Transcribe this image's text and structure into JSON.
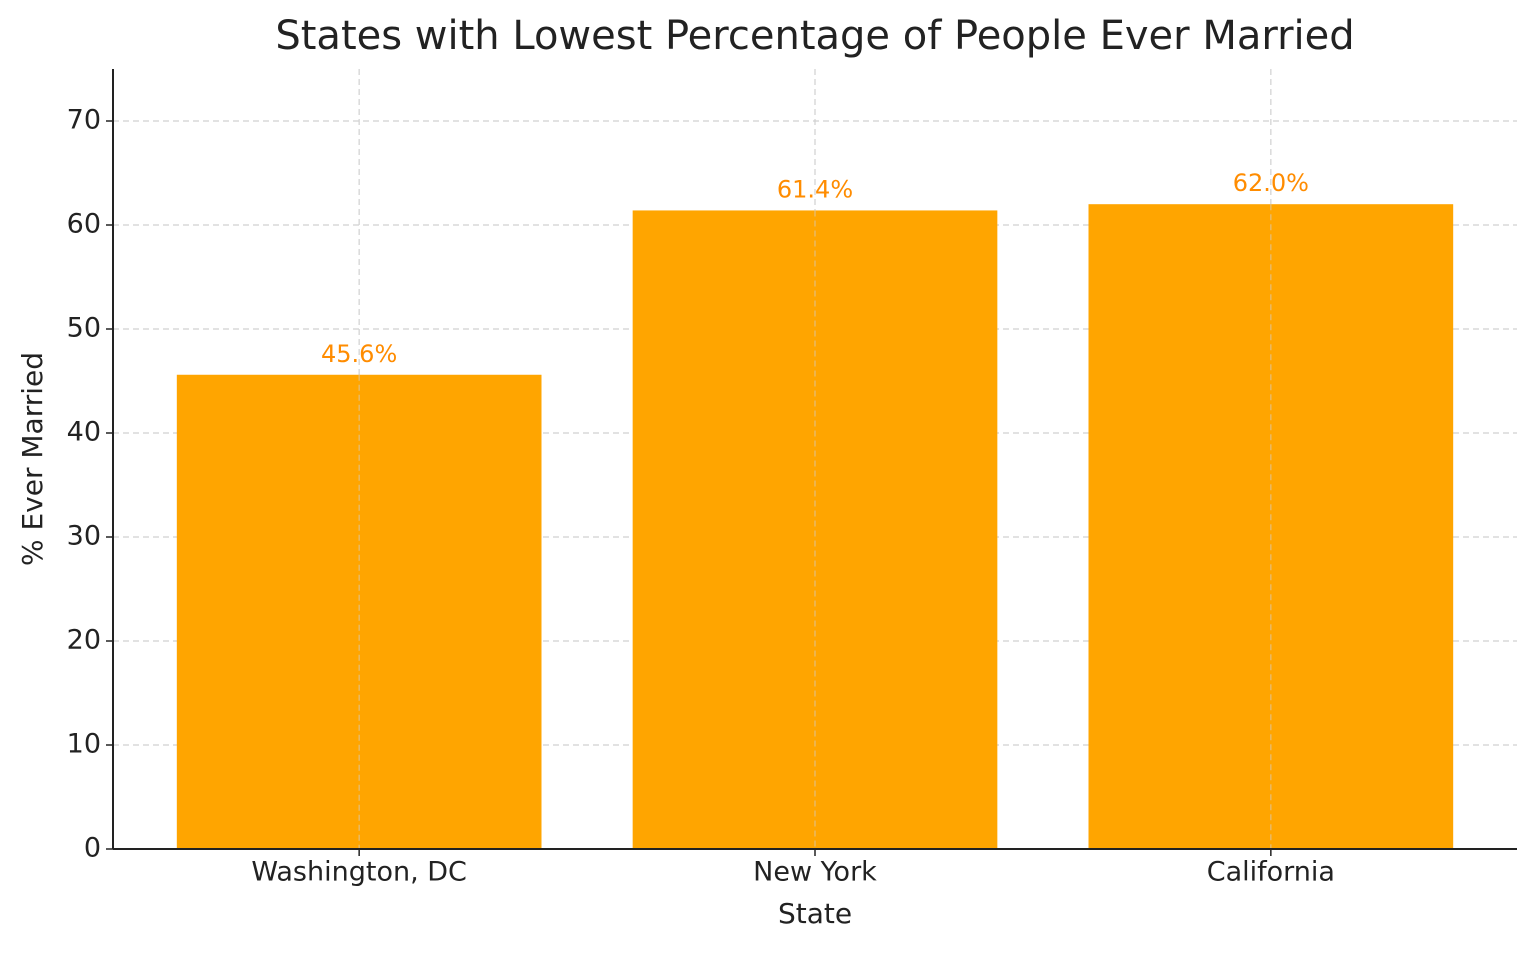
{
  "chart_data": {
    "type": "bar",
    "title": "States with Lowest Percentage of People Ever Married",
    "x_label": "State",
    "y_label": "% Ever Married",
    "categories": [
      "Washington, DC",
      "New York",
      "California"
    ],
    "values": [
      45.6,
      61.4,
      62.0
    ],
    "value_labels": [
      "45.6%",
      "61.4%",
      "62.0%"
    ],
    "color": "#ffa500",
    "value_label_color": "#ff8c00",
    "ylim": [
      0,
      75
    ],
    "yticks": [
      0,
      10,
      20,
      30,
      40,
      50,
      60,
      70
    ],
    "grid": true
  }
}
